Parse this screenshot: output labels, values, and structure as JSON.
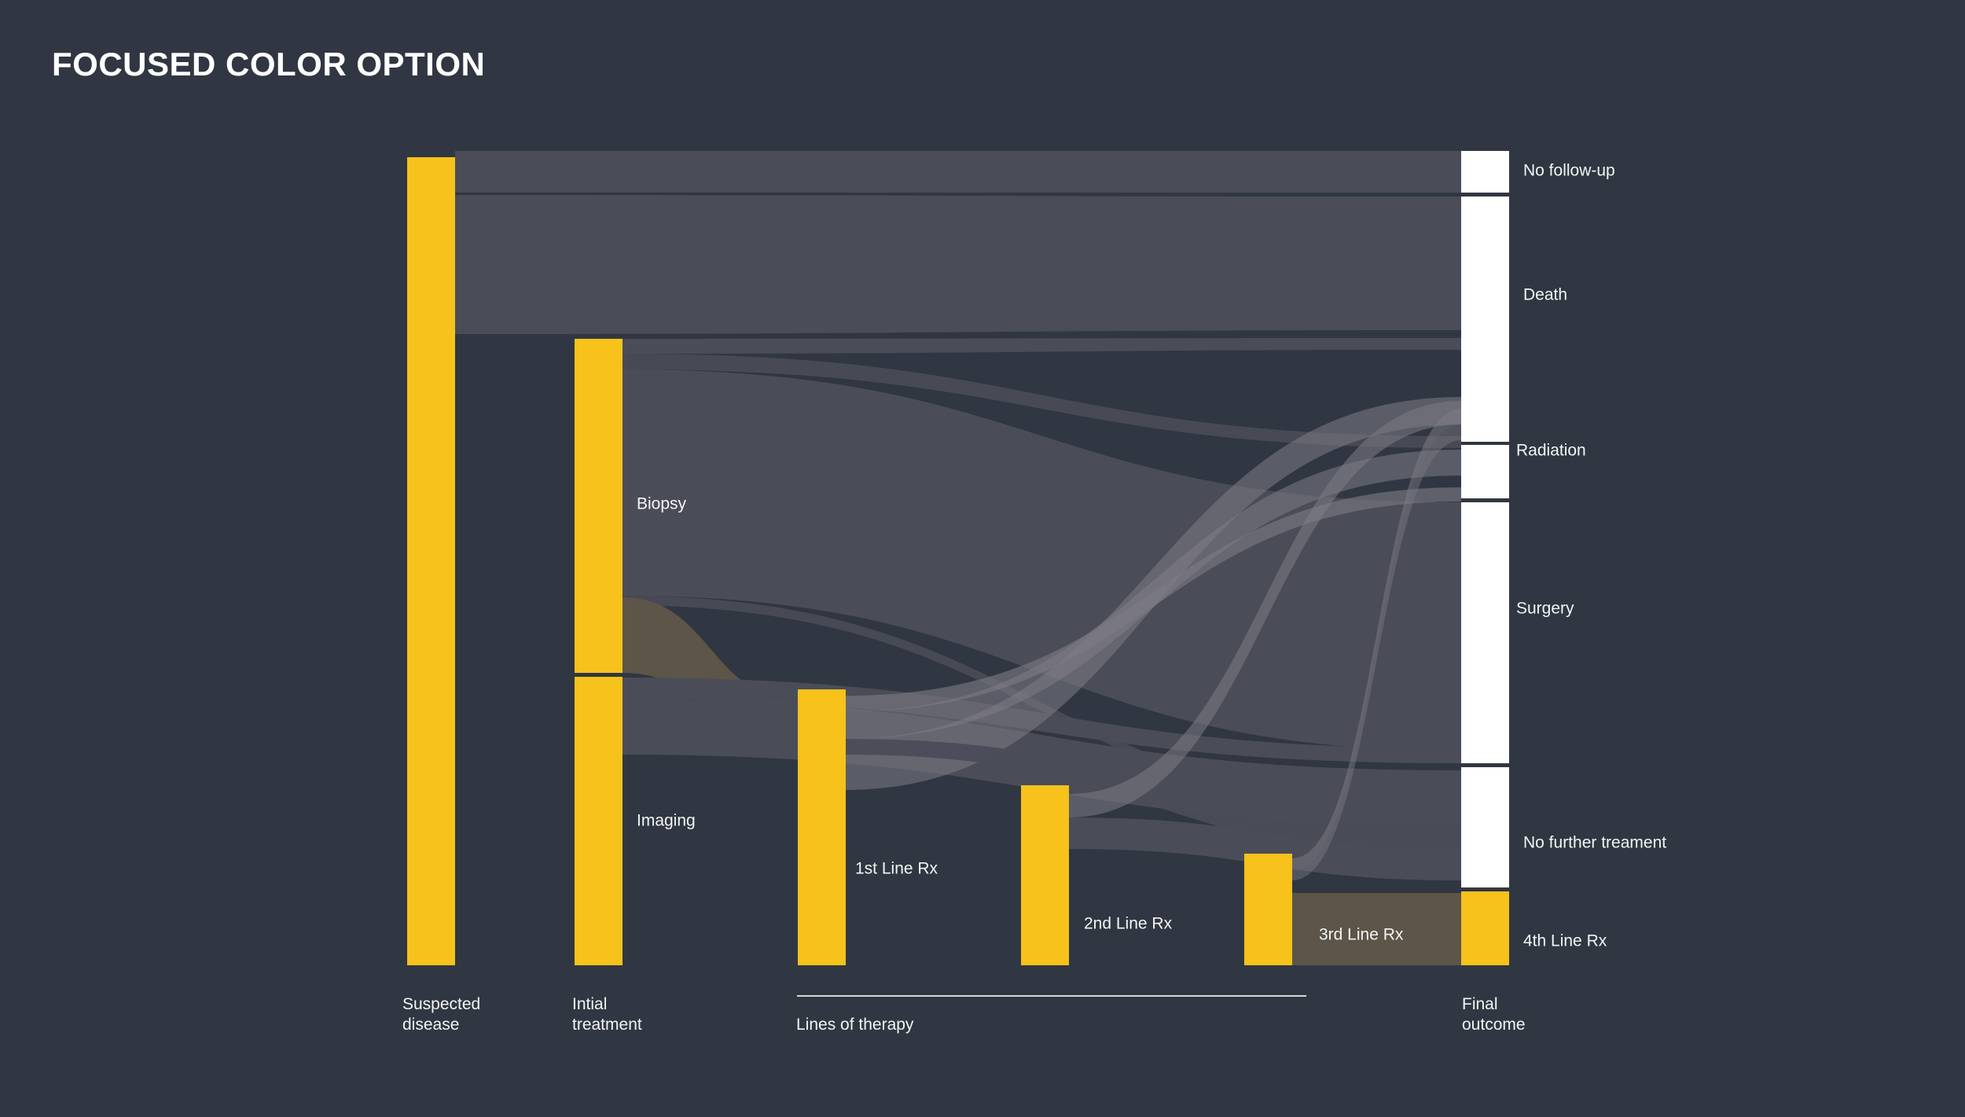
{
  "title": "FOCUSED COLOR OPTION",
  "colors": {
    "background": "#303742",
    "node_accent": "#f6c21b",
    "node_outcome": "#ffffff",
    "flow_default": "#4a4d58",
    "flow_highlight": "#5c5548",
    "flow_light": "#7d7b86"
  },
  "nodes": {
    "suspected": {
      "label": ""
    },
    "biopsy": {
      "label": "Biopsy"
    },
    "imaging": {
      "label": "Imaging"
    },
    "rx1": {
      "label": "1st Line Rx"
    },
    "rx2": {
      "label": "2nd Line Rx"
    },
    "rx3": {
      "label": "3rd Line Rx"
    },
    "nofollow": {
      "label": "No follow-up"
    },
    "death": {
      "label": "Death"
    },
    "radiation": {
      "label": "Radiation"
    },
    "surgery": {
      "label": "Surgery"
    },
    "nofurther": {
      "label": "No further treament"
    },
    "rx4": {
      "label": "4th Line Rx"
    }
  },
  "columns": {
    "suspected": "Suspected\ndisease",
    "initial": "Intial\ntreatment",
    "therapy": "Lines of therapy",
    "final": "Final\noutcome"
  }
}
